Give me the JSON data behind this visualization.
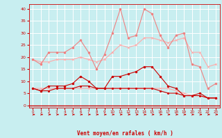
{
  "x": [
    0,
    1,
    2,
    3,
    4,
    5,
    6,
    7,
    8,
    9,
    10,
    11,
    12,
    13,
    14,
    15,
    16,
    17,
    18,
    19,
    20,
    21,
    22,
    23
  ],
  "series_rafales_light": [
    19,
    17,
    22,
    22,
    22,
    24,
    27,
    22,
    15,
    21,
    30,
    40,
    28,
    29,
    40,
    38,
    29,
    24,
    29,
    30,
    17,
    16,
    7,
    9
  ],
  "series_raf_dark": [
    7,
    6,
    8,
    8,
    8,
    9,
    12,
    10,
    7,
    7,
    12,
    12,
    13,
    14,
    16,
    16,
    12,
    8,
    7,
    4,
    4,
    5,
    3,
    3
  ],
  "series_moy_dark": [
    7,
    6,
    6,
    7,
    7,
    7,
    8,
    8,
    7,
    7,
    7,
    7,
    7,
    7,
    7,
    7,
    6,
    5,
    5,
    4,
    4,
    4,
    3,
    3
  ],
  "series_trend1": [
    19,
    18,
    18,
    19,
    19,
    19,
    20,
    19,
    18,
    19,
    22,
    25,
    24,
    25,
    28,
    28,
    27,
    26,
    27,
    28,
    22,
    22,
    16,
    17
  ],
  "series_trend2": [
    7,
    7,
    7,
    7,
    7,
    7,
    7,
    7,
    7,
    7,
    7,
    7,
    7,
    7,
    7,
    7,
    7,
    7,
    6,
    5,
    4,
    4,
    3,
    3
  ],
  "color_light": "#f08080",
  "color_dark": "#cc0000",
  "color_trend": "#ffaaaa",
  "bg_color": "#c8eef0",
  "grid_color": "#ffffff",
  "xlabel": "Vent moyen/en rafales ( km/h )",
  "xlabel_color": "#cc0000",
  "tick_color": "#cc0000",
  "ylim": [
    -1,
    42
  ],
  "yticks": [
    0,
    5,
    10,
    15,
    20,
    25,
    30,
    35,
    40
  ]
}
